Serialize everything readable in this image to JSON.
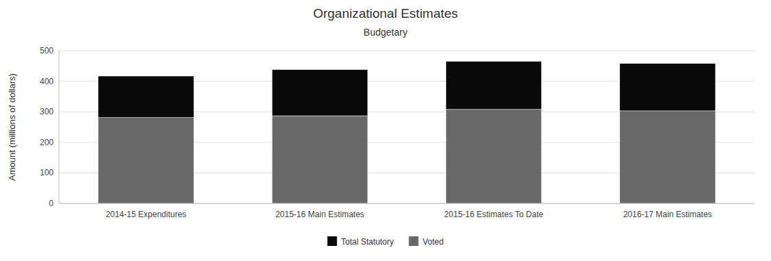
{
  "chart_data": {
    "type": "bar",
    "stacked": true,
    "title": "Organizational Estimates",
    "subtitle": "Budgetary",
    "ylabel": "Amount (millions of dollars)",
    "categories": [
      "2014-15 Expenditures",
      "2015-16 Main Estimates",
      "2015-16 Estimates To Date",
      "2016-17 Main Estimates"
    ],
    "series": [
      {
        "name": "Voted",
        "color": "#696969",
        "values": [
          281,
          287,
          308,
          303
        ]
      },
      {
        "name": "Total Statutory",
        "color": "#0a0a0a",
        "values": [
          136,
          151,
          157,
          155
        ]
      }
    ],
    "ylim": [
      0,
      500
    ],
    "yticks": [
      0,
      100,
      200,
      300,
      400,
      500
    ],
    "grid": true,
    "legend": "bottom"
  }
}
